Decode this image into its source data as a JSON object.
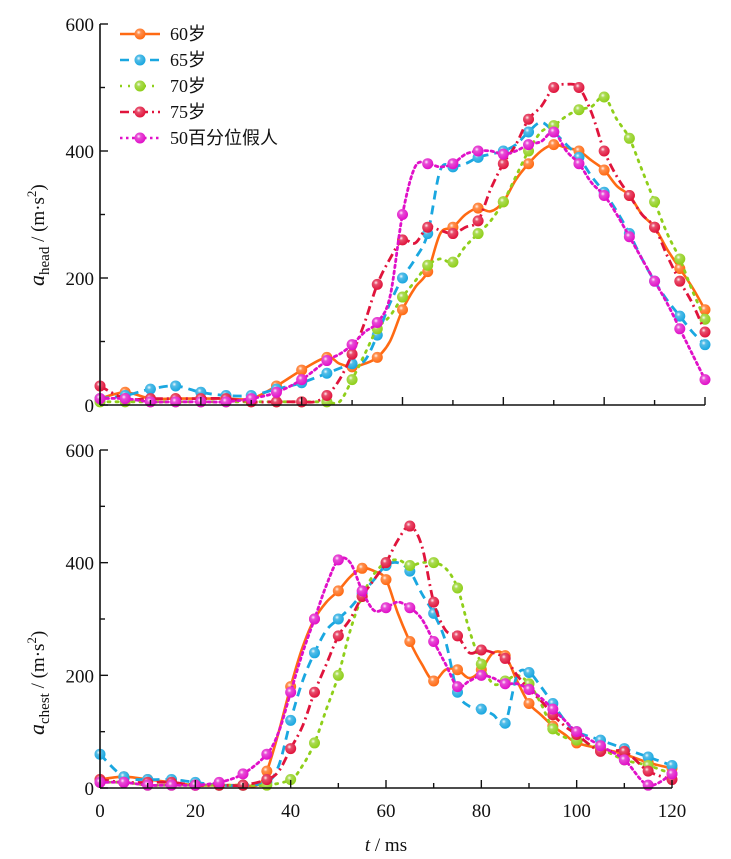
{
  "chart_data": [
    {
      "type": "line",
      "id": "head",
      "title": "",
      "xlabel": "",
      "ylabel_main": "a",
      "ylabel_sub": "head",
      "ylabel_unit": " / (m·s",
      "ylabel_sup": "2",
      "ylabel_close": ")",
      "xlim": [
        0,
        120
      ],
      "ylim": [
        0,
        600
      ],
      "yticks": [
        "0",
        "200",
        "400",
        "600"
      ],
      "xticks_labeled": false,
      "grid": false,
      "legend_position": "top-left",
      "series": [
        {
          "name": "60岁",
          "color": "#ff6a13",
          "dash": "solid",
          "x": [
            0,
            5,
            10,
            15,
            20,
            25,
            30,
            35,
            40,
            45,
            47.5,
            50,
            52.5,
            55,
            57.5,
            60,
            62.5,
            65,
            67.5,
            70,
            72.5,
            75,
            77.5,
            80,
            82.5,
            85,
            87.5,
            90,
            92.5,
            95,
            97.5,
            100,
            102.5,
            105,
            107.5,
            110,
            112.5,
            115,
            117.5,
            120
          ],
          "y": [
            10,
            20,
            10,
            10,
            10,
            10,
            10,
            30,
            55,
            75,
            65,
            60,
            65,
            75,
            100,
            150,
            185,
            210,
            270,
            280,
            300,
            310,
            305,
            320,
            355,
            380,
            400,
            410,
            405,
            400,
            385,
            370,
            345,
            330,
            300,
            280,
            245,
            215,
            185,
            150
          ]
        },
        {
          "name": "65岁",
          "color": "#1aa7e0",
          "dash": "dashed",
          "x": [
            0,
            5,
            10,
            15,
            20,
            25,
            30,
            35,
            40,
            45,
            50,
            52.5,
            55,
            57.5,
            60,
            62.5,
            65,
            67.5,
            70,
            72.5,
            75,
            77.5,
            80,
            82.5,
            85,
            87.5,
            90,
            92.5,
            95,
            97.5,
            100,
            102.5,
            105,
            107.5,
            110,
            112.5,
            115,
            117.5,
            120
          ],
          "y": [
            10,
            15,
            25,
            30,
            20,
            15,
            15,
            25,
            35,
            50,
            65,
            70,
            110,
            160,
            200,
            230,
            270,
            370,
            375,
            380,
            390,
            395,
            400,
            410,
            430,
            445,
            430,
            410,
            390,
            360,
            335,
            305,
            270,
            230,
            195,
            165,
            140,
            115,
            95
          ]
        },
        {
          "name": "70岁",
          "color": "#8fcf1a",
          "dash": "dotted",
          "x": [
            0,
            5,
            10,
            15,
            20,
            25,
            30,
            35,
            40,
            42.5,
            45,
            47.5,
            50,
            52.5,
            55,
            57.5,
            60,
            62.5,
            65,
            67.5,
            70,
            72.5,
            75,
            77.5,
            80,
            82.5,
            85,
            87.5,
            90,
            92.5,
            95,
            97.5,
            100,
            102.5,
            105,
            107.5,
            110,
            112.5,
            115,
            117.5,
            120
          ],
          "y": [
            5,
            5,
            5,
            5,
            5,
            5,
            5,
            5,
            5,
            5,
            5,
            5,
            40,
            80,
            120,
            140,
            170,
            195,
            220,
            230,
            225,
            250,
            270,
            290,
            320,
            360,
            400,
            430,
            440,
            455,
            465,
            470,
            485,
            450,
            420,
            370,
            320,
            270,
            230,
            180,
            135
          ]
        },
        {
          "name": "75岁",
          "color": "#e0143c",
          "dash": "dashdot",
          "x": [
            0,
            5,
            10,
            15,
            20,
            25,
            30,
            35,
            40,
            42.5,
            45,
            47.5,
            50,
            52.5,
            55,
            57.5,
            60,
            62.5,
            65,
            67.5,
            70,
            72.5,
            75,
            77.5,
            80,
            82.5,
            85,
            87.5,
            90,
            92.5,
            95,
            97.5,
            100,
            102.5,
            105,
            107.5,
            110,
            112.5,
            115,
            117.5,
            120
          ],
          "y": [
            30,
            10,
            10,
            10,
            10,
            10,
            5,
            5,
            5,
            5,
            15,
            40,
            80,
            130,
            190,
            230,
            260,
            255,
            280,
            275,
            270,
            280,
            290,
            340,
            380,
            410,
            450,
            470,
            500,
            505,
            500,
            460,
            400,
            360,
            330,
            300,
            280,
            235,
            195,
            160,
            115
          ]
        },
        {
          "name": "50百分位假人",
          "color": "#e010c8",
          "dash": "densedot",
          "x": [
            0,
            5,
            10,
            15,
            20,
            25,
            30,
            35,
            40,
            45,
            47.5,
            50,
            52.5,
            55,
            57.5,
            60,
            62.5,
            65,
            67.5,
            70,
            72.5,
            75,
            77.5,
            80,
            82.5,
            85,
            87.5,
            90,
            92.5,
            95,
            97.5,
            100,
            102.5,
            105,
            107.5,
            110,
            112.5,
            115,
            117.5,
            120
          ],
          "y": [
            10,
            10,
            5,
            5,
            5,
            5,
            10,
            20,
            40,
            70,
            80,
            95,
            115,
            130,
            170,
            300,
            375,
            380,
            375,
            380,
            395,
            400,
            400,
            395,
            400,
            410,
            415,
            430,
            400,
            380,
            350,
            330,
            300,
            265,
            230,
            195,
            160,
            120,
            80,
            40
          ]
        }
      ]
    },
    {
      "type": "line",
      "id": "chest",
      "title": "",
      "xlabel_main": "t",
      "xlabel_unit": " / ms",
      "ylabel_main": "a",
      "ylabel_sub": "chest",
      "ylabel_unit": " / (m·s",
      "ylabel_sup": "2",
      "ylabel_close": ")",
      "xlim": [
        0,
        120
      ],
      "ylim": [
        0,
        600
      ],
      "xticks": [
        "0",
        "20",
        "40",
        "60",
        "80",
        "100",
        "120"
      ],
      "yticks": [
        "0",
        "200",
        "400",
        "600"
      ],
      "grid": false,
      "series": [
        {
          "name": "60岁",
          "color": "#ff6a13",
          "dash": "solid",
          "x": [
            0,
            5,
            10,
            15,
            20,
            25,
            30,
            33,
            35,
            37.5,
            40,
            42.5,
            45,
            47.5,
            50,
            52.5,
            55,
            57.5,
            60,
            62.5,
            65,
            67.5,
            70,
            72.5,
            75,
            77.5,
            80,
            82.5,
            85,
            87.5,
            90,
            92.5,
            95,
            97.5,
            100,
            105,
            110,
            115,
            120
          ],
          "y": [
            15,
            20,
            15,
            10,
            5,
            5,
            5,
            5,
            30,
            100,
            180,
            250,
            300,
            330,
            350,
            375,
            390,
            385,
            370,
            310,
            260,
            220,
            190,
            210,
            210,
            195,
            210,
            240,
            235,
            190,
            150,
            130,
            110,
            95,
            80,
            70,
            60,
            45,
            35
          ]
        },
        {
          "name": "65岁",
          "color": "#1aa7e0",
          "dash": "dashed",
          "x": [
            0,
            5,
            10,
            15,
            20,
            25,
            30,
            35,
            37.5,
            40,
            42.5,
            45,
            47.5,
            50,
            52.5,
            55,
            57.5,
            60,
            62.5,
            65,
            67.5,
            70,
            72.5,
            75,
            77.5,
            80,
            82.5,
            85,
            87.5,
            90,
            92.5,
            95,
            97.5,
            100,
            105,
            110,
            115,
            120
          ],
          "y": [
            60,
            20,
            15,
            15,
            10,
            5,
            5,
            10,
            40,
            120,
            190,
            240,
            280,
            300,
            320,
            345,
            370,
            395,
            400,
            385,
            345,
            310,
            260,
            170,
            145,
            140,
            130,
            115,
            200,
            205,
            180,
            150,
            120,
            100,
            85,
            70,
            55,
            40
          ]
        },
        {
          "name": "70岁",
          "color": "#8fcf1a",
          "dash": "dotted",
          "x": [
            0,
            5,
            10,
            15,
            20,
            25,
            30,
            35,
            40,
            42.5,
            45,
            47.5,
            50,
            52.5,
            55,
            57.5,
            60,
            62.5,
            65,
            67.5,
            70,
            72.5,
            75,
            77.5,
            80,
            82.5,
            85,
            87.5,
            90,
            92.5,
            95,
            97.5,
            100,
            105,
            110,
            115,
            120
          ],
          "y": [
            10,
            10,
            5,
            5,
            5,
            5,
            5,
            5,
            15,
            40,
            80,
            140,
            200,
            280,
            340,
            380,
            400,
            405,
            395,
            400,
            400,
            390,
            355,
            280,
            220,
            185,
            190,
            200,
            185,
            150,
            105,
            90,
            85,
            70,
            50,
            40,
            25
          ]
        },
        {
          "name": "75岁",
          "color": "#e0143c",
          "dash": "dashdot",
          "x": [
            0,
            5,
            10,
            15,
            20,
            25,
            30,
            35,
            37.5,
            40,
            42.5,
            45,
            47.5,
            50,
            52.5,
            55,
            57.5,
            60,
            62.5,
            65,
            67.5,
            70,
            72.5,
            75,
            77.5,
            80,
            82.5,
            85,
            87.5,
            90,
            92.5,
            95,
            97.5,
            100,
            105,
            110,
            115,
            120
          ],
          "y": [
            15,
            10,
            10,
            10,
            5,
            5,
            5,
            15,
            30,
            70,
            110,
            170,
            220,
            270,
            300,
            340,
            370,
            400,
            440,
            465,
            430,
            330,
            280,
            270,
            240,
            245,
            240,
            230,
            200,
            175,
            155,
            130,
            110,
            95,
            65,
            65,
            30,
            15
          ]
        },
        {
          "name": "50百分位假人",
          "color": "#e010c8",
          "dash": "densedot",
          "x": [
            0,
            5,
            10,
            15,
            20,
            25,
            30,
            35,
            37.5,
            40,
            42.5,
            45,
            47.5,
            50,
            52.5,
            55,
            57.5,
            60,
            62.5,
            65,
            67.5,
            70,
            72.5,
            75,
            77.5,
            80,
            82.5,
            85,
            87.5,
            90,
            92.5,
            95,
            97.5,
            100,
            105,
            110,
            115,
            120
          ],
          "y": [
            10,
            10,
            5,
            5,
            5,
            10,
            25,
            60,
            100,
            170,
            240,
            300,
            360,
            405,
            400,
            350,
            315,
            320,
            330,
            320,
            300,
            260,
            220,
            180,
            190,
            200,
            195,
            185,
            185,
            175,
            160,
            140,
            120,
            100,
            75,
            50,
            5,
            25
          ]
        }
      ]
    }
  ]
}
